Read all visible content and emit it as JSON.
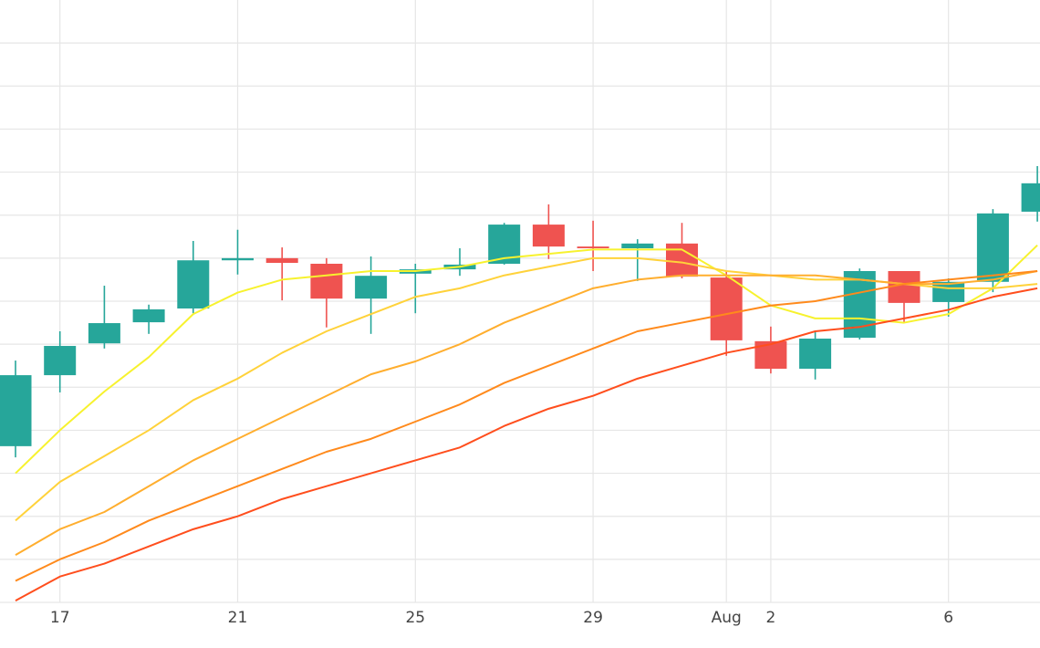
{
  "chart_data": {
    "type": "candlestick",
    "categories": [
      null,
      "17",
      null,
      null,
      null,
      "21",
      null,
      null,
      null,
      "25",
      null,
      null,
      null,
      "29",
      null,
      null,
      "Aug",
      "2",
      null,
      null,
      null,
      "6",
      null,
      null
    ],
    "open": [
      3.63,
      5.28,
      6.02,
      6.51,
      6.83,
      7.95,
      8.0,
      7.87,
      7.06,
      7.64,
      7.74,
      7.87,
      8.78,
      8.27,
      8.23,
      8.34,
      7.55,
      6.07,
      5.43,
      6.15,
      7.7,
      6.98,
      7.45,
      9.08
    ],
    "high": [
      5.62,
      6.3,
      7.36,
      6.92,
      8.4,
      8.66,
      8.25,
      8.0,
      8.04,
      7.87,
      8.23,
      8.82,
      9.25,
      8.87,
      8.44,
      8.82,
      7.7,
      6.41,
      6.28,
      7.76,
      7.7,
      7.53,
      9.14,
      10.14
    ],
    "low": [
      3.37,
      4.88,
      5.9,
      6.24,
      6.72,
      7.62,
      7.02,
      6.39,
      6.24,
      6.72,
      7.59,
      7.85,
      7.98,
      7.7,
      7.47,
      7.53,
      5.73,
      5.32,
      5.18,
      6.11,
      6.51,
      6.64,
      7.21,
      8.85
    ],
    "close": [
      5.28,
      5.96,
      6.49,
      6.81,
      7.95,
      8.0,
      7.89,
      7.06,
      7.59,
      7.74,
      7.85,
      8.78,
      8.27,
      8.23,
      8.34,
      7.57,
      6.09,
      5.43,
      6.13,
      7.7,
      6.96,
      7.45,
      9.04,
      9.74
    ],
    "increasing_color": "#26a69a",
    "decreasing_color": "#ef5350",
    "lines": [
      {
        "color": "#f7f22e",
        "values": [
          3.0,
          4.0,
          4.9,
          5.7,
          6.7,
          7.2,
          7.5,
          7.6,
          7.7,
          7.7,
          7.8,
          8.0,
          8.1,
          8.2,
          8.2,
          8.2,
          7.6,
          6.9,
          6.6,
          6.6,
          6.5,
          6.7,
          7.3,
          8.3
        ]
      },
      {
        "color": "#ffd23a",
        "values": [
          1.9,
          2.8,
          3.4,
          4.0,
          4.7,
          5.2,
          5.8,
          6.3,
          6.7,
          7.1,
          7.3,
          7.6,
          7.8,
          8.0,
          8.0,
          7.9,
          7.7,
          7.6,
          7.5,
          7.5,
          7.4,
          7.3,
          7.3,
          7.4
        ]
      },
      {
        "color": "#ffae2e",
        "values": [
          1.1,
          1.7,
          2.1,
          2.7,
          3.3,
          3.8,
          4.3,
          4.8,
          5.3,
          5.6,
          6.0,
          6.5,
          6.9,
          7.3,
          7.5,
          7.6,
          7.6,
          7.6,
          7.6,
          7.5,
          7.4,
          7.4,
          7.5,
          7.7
        ]
      },
      {
        "color": "#ff8a1c",
        "values": [
          0.5,
          1.0,
          1.4,
          1.9,
          2.3,
          2.7,
          3.1,
          3.5,
          3.8,
          4.2,
          4.6,
          5.1,
          5.5,
          5.9,
          6.3,
          6.5,
          6.7,
          6.9,
          7.0,
          7.2,
          7.4,
          7.5,
          7.6,
          7.7
        ]
      },
      {
        "color": "#ff4e1d",
        "values": [
          0.04,
          0.6,
          0.9,
          1.3,
          1.7,
          2.0,
          2.4,
          2.7,
          3.0,
          3.3,
          3.6,
          4.1,
          4.5,
          4.8,
          5.2,
          5.5,
          5.8,
          6.0,
          6.3,
          6.4,
          6.6,
          6.8,
          7.1,
          7.3
        ]
      }
    ],
    "ylim": [
      0,
      14
    ],
    "yticks": [
      0,
      1,
      2,
      3,
      4,
      5,
      6,
      7,
      8,
      9,
      10,
      11,
      12,
      13
    ],
    "grid": true
  }
}
